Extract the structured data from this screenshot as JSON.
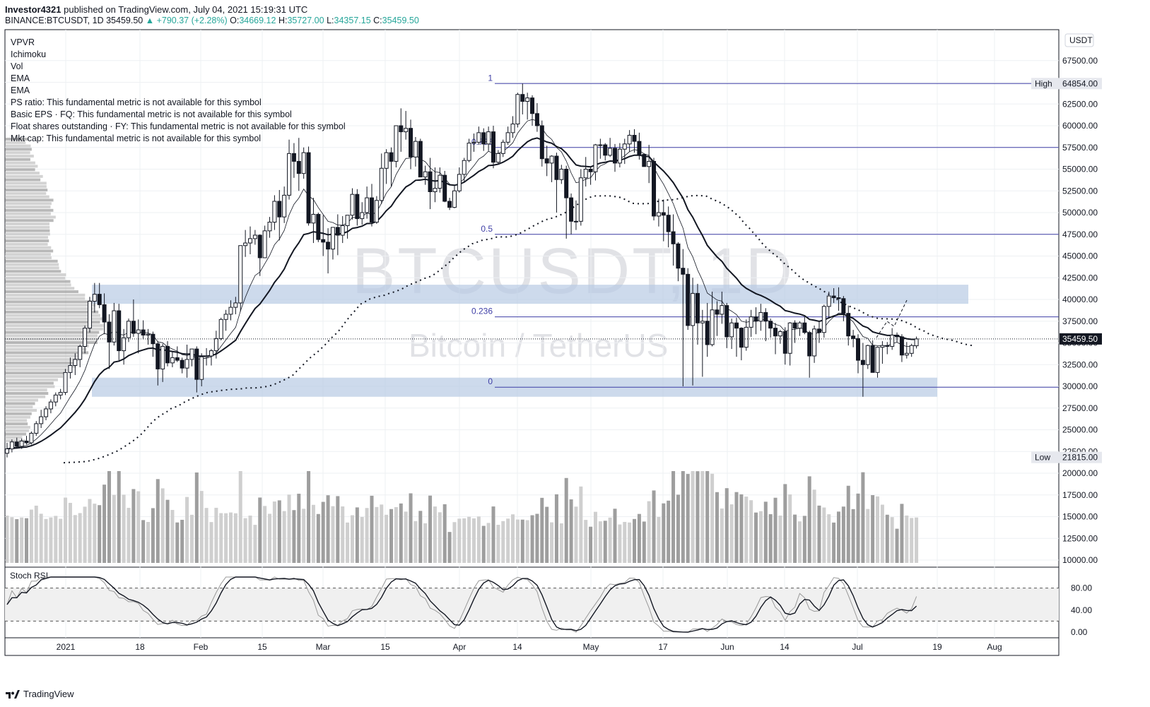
{
  "header": {
    "publisher": "Investor4321",
    "published_text": "published on TradingView.com, July 04, 2021 15:19:31 UTC",
    "symbol_line": "BINANCE:BTCUSDT, 1D",
    "last": "35459.50",
    "change": "▲ +790.37 (+2.28%)",
    "o_label": "O:",
    "o": "34669.12",
    "h_label": "H:",
    "h": "35727.00",
    "l_label": "L:",
    "l": "34357.15",
    "c_label": "C:",
    "c": "35459.50"
  },
  "indicators": [
    "VPVR",
    "Ichimoku",
    "Vol",
    "EMA",
    "EMA",
    "PS ratio: This fundamental metric is not available for this symbol",
    "Basic EPS · FQ: This fundamental metric is not available for this symbol",
    "Float shares outstanding · FY: This fundamental metric is not available for this symbol",
    "Mkt cap: This fundamental metric is not available for this symbol"
  ],
  "watermark": {
    "symbol": "BTCUSDT, 1D",
    "description": "Bitcoin / TetherUS"
  },
  "currency": "USDT",
  "footer": {
    "brand": "TradingView"
  },
  "colors": {
    "fib_line": "#3f3fa6",
    "zone": "#b8cbe4",
    "candle": "#131722",
    "volume": "#9e9e9e",
    "volume_light": "#cfcfcf"
  },
  "chart_data": {
    "type": "candlestick",
    "title": "BTCUSDT, 1D",
    "y_axis_ticks": [
      "67500.00",
      "65000.00",
      "62500.00",
      "60000.00",
      "57500.00",
      "55000.00",
      "52500.00",
      "50000.00",
      "47500.00",
      "45000.00",
      "42500.00",
      "40000.00",
      "37500.00",
      "35000.00",
      "32500.00",
      "30000.00",
      "27500.00",
      "25000.00",
      "22500.00",
      "20000.00",
      "17500.00",
      "15000.00",
      "12500.00",
      "10000.00"
    ],
    "ylim": [
      10000,
      70000
    ],
    "x_axis_ticks": [
      "2021",
      "18",
      "Feb",
      "15",
      "Mar",
      "15",
      "Apr",
      "14",
      "May",
      "17",
      "Jun",
      "14",
      "Jul",
      "19",
      "Aug"
    ],
    "high_marker": {
      "label": "High",
      "value": "64854.00"
    },
    "low_marker": {
      "label": "Low",
      "value": "21815.00"
    },
    "last_price": "35459.50",
    "fib_levels": [
      {
        "ratio": "1",
        "price": 64854
      },
      {
        "ratio": "0.786",
        "price": 57500
      },
      {
        "ratio": "0.5",
        "price": 47500
      },
      {
        "ratio": "0.236",
        "price": 38000
      },
      {
        "ratio": "0",
        "price": 29900
      }
    ],
    "zones": [
      {
        "from": 39500,
        "to": 41700
      },
      {
        "from": 28800,
        "to": 31000
      }
    ],
    "stoch_rsi": {
      "label": "Stoch RSI",
      "ticks": [
        "80.00",
        "40.00",
        "0.00"
      ],
      "upper": 80,
      "lower": 20
    },
    "candles": [
      [
        22300,
        23500,
        21815,
        22800
      ],
      [
        22800,
        23900,
        22400,
        23600
      ],
      [
        23600,
        24100,
        22900,
        23100
      ],
      [
        23100,
        24000,
        22800,
        23700
      ],
      [
        23700,
        24300,
        23300,
        23500
      ],
      [
        23500,
        24800,
        23300,
        24600
      ],
      [
        24600,
        26000,
        24300,
        25700
      ],
      [
        25700,
        27300,
        25200,
        26500
      ],
      [
        26500,
        27700,
        26100,
        27400
      ],
      [
        27400,
        28500,
        26900,
        28200
      ],
      [
        28200,
        29300,
        27700,
        29000
      ],
      [
        29000,
        29700,
        28500,
        29300
      ],
      [
        29300,
        32000,
        29000,
        31600
      ],
      [
        31600,
        33300,
        30900,
        32400
      ],
      [
        32400,
        33800,
        31300,
        33100
      ],
      [
        33100,
        34800,
        32200,
        34600
      ],
      [
        34600,
        37000,
        33800,
        36700
      ],
      [
        36700,
        40300,
        36200,
        39800
      ],
      [
        39800,
        41900,
        38500,
        40600
      ],
      [
        40600,
        41900,
        39000,
        39400
      ],
      [
        39400,
        40700,
        36000,
        37400
      ],
      [
        37400,
        38300,
        32000,
        35100
      ],
      [
        35100,
        39600,
        34700,
        38700
      ],
      [
        38700,
        39500,
        33000,
        34100
      ],
      [
        34100,
        36600,
        32500,
        35600
      ],
      [
        35600,
        37800,
        35100,
        37500
      ],
      [
        37500,
        40000,
        35700,
        36100
      ],
      [
        36100,
        37700,
        33800,
        36500
      ],
      [
        36500,
        37600,
        35400,
        35900
      ],
      [
        35900,
        36600,
        34800,
        36000
      ],
      [
        36000,
        36300,
        33400,
        34900
      ],
      [
        34900,
        35200,
        30100,
        32000
      ],
      [
        32000,
        34900,
        30500,
        34600
      ],
      [
        34600,
        35200,
        32300,
        32700
      ],
      [
        32700,
        34000,
        32200,
        33300
      ],
      [
        33300,
        34600,
        32800,
        33000
      ],
      [
        33000,
        33300,
        31500,
        32100
      ],
      [
        32100,
        34800,
        31000,
        33100
      ],
      [
        33100,
        34300,
        32300,
        34300
      ],
      [
        34300,
        34600,
        29300,
        30800
      ],
      [
        30800,
        33800,
        30000,
        33400
      ],
      [
        33400,
        34400,
        32400,
        33500
      ],
      [
        33500,
        34300,
        32400,
        34100
      ],
      [
        34100,
        36400,
        33200,
        35500
      ],
      [
        35500,
        37900,
        35300,
        37700
      ],
      [
        37700,
        38800,
        36400,
        38300
      ],
      [
        38300,
        39900,
        37600,
        39100
      ],
      [
        39100,
        40300,
        38300,
        39600
      ],
      [
        39600,
        46200,
        38600,
        46200
      ],
      [
        46200,
        48000,
        44900,
        46500
      ],
      [
        46500,
        48400,
        45200,
        47000
      ],
      [
        47000,
        48000,
        46300,
        47400
      ],
      [
        47400,
        47500,
        42700,
        44800
      ],
      [
        44800,
        48500,
        44800,
        47900
      ],
      [
        47900,
        49500,
        47100,
        48900
      ],
      [
        48900,
        52000,
        48000,
        51300
      ],
      [
        51300,
        52600,
        46800,
        49500
      ],
      [
        49500,
        53000,
        48800,
        52000
      ],
      [
        52000,
        58400,
        51500,
        56800
      ],
      [
        56800,
        58000,
        54000,
        55900
      ],
      [
        55900,
        58600,
        52500,
        54500
      ],
      [
        54500,
        57500,
        53900,
        56900
      ],
      [
        56900,
        57600,
        48500,
        48800
      ],
      [
        48800,
        51700,
        46500,
        49800
      ],
      [
        49800,
        50000,
        46600,
        46900
      ],
      [
        46900,
        49700,
        45000,
        46600
      ],
      [
        46600,
        48200,
        43000,
        45800
      ],
      [
        45800,
        48300,
        44600,
        48300
      ],
      [
        48300,
        49800,
        45100,
        47400
      ],
      [
        47400,
        49600,
        46500,
        48500
      ],
      [
        48500,
        49700,
        47000,
        49700
      ],
      [
        49700,
        52800,
        49200,
        52100
      ],
      [
        52100,
        52700,
        48500,
        49300
      ],
      [
        49300,
        51200,
        48600,
        50000
      ],
      [
        50000,
        53000,
        49300,
        51700
      ],
      [
        51700,
        53300,
        48400,
        48900
      ],
      [
        48900,
        51900,
        48700,
        51400
      ],
      [
        51400,
        56800,
        51000,
        55100
      ],
      [
        55100,
        57300,
        53300,
        56900
      ],
      [
        56900,
        57500,
        53000,
        55900
      ],
      [
        55900,
        60000,
        55200,
        60000
      ],
      [
        60000,
        62000,
        57000,
        59300
      ],
      [
        59300,
        61700,
        58400,
        59700
      ],
      [
        59700,
        60700,
        55000,
        56400
      ],
      [
        56400,
        58700,
        55300,
        58200
      ],
      [
        58200,
        58500,
        54100,
        54100
      ],
      [
        54100,
        55400,
        53200,
        54700
      ],
      [
        54700,
        56300,
        50400,
        52400
      ],
      [
        52400,
        55200,
        51200,
        52800
      ],
      [
        52800,
        55200,
        52300,
        54300
      ],
      [
        54300,
        54800,
        51200,
        51300
      ],
      [
        51300,
        51700,
        50300,
        50600
      ],
      [
        50600,
        53100,
        50500,
        52500
      ],
      [
        52500,
        55200,
        52300,
        54400
      ],
      [
        54400,
        56300,
        53600,
        56000
      ],
      [
        56000,
        58500,
        55800,
        58000
      ],
      [
        58000,
        59100,
        57000,
        58100
      ],
      [
        58100,
        59900,
        57800,
        59200
      ],
      [
        59200,
        59700,
        57100,
        57900
      ],
      [
        57900,
        59900,
        57100,
        59300
      ],
      [
        59300,
        60000,
        55100,
        55800
      ],
      [
        55800,
        57200,
        55500,
        56800
      ],
      [
        56800,
        58400,
        56400,
        58100
      ],
      [
        58100,
        59900,
        57800,
        59200
      ],
      [
        59200,
        61100,
        58600,
        60200
      ],
      [
        60200,
        63800,
        59800,
        63600
      ],
      [
        63600,
        64854,
        61300,
        62800
      ],
      [
        62800,
        63800,
        60700,
        63200
      ],
      [
        63200,
        63500,
        60000,
        61400
      ],
      [
        61400,
        62600,
        59300,
        60000
      ],
      [
        60000,
        60600,
        55300,
        56200
      ],
      [
        56200,
        57700,
        54200,
        55700
      ],
      [
        55700,
        56600,
        53500,
        56500
      ],
      [
        56500,
        56900,
        50000,
        53800
      ],
      [
        53800,
        55500,
        53300,
        55000
      ],
      [
        55000,
        55400,
        47000,
        51700
      ],
      [
        51700,
        52200,
        47500,
        49000
      ],
      [
        49000,
        51400,
        48000,
        49000
      ],
      [
        49000,
        55000,
        48500,
        54000
      ],
      [
        54000,
        56400,
        53000,
        55000
      ],
      [
        55000,
        55200,
        53200,
        54700
      ],
      [
        54700,
        57900,
        53700,
        57800
      ],
      [
        57800,
        58500,
        56200,
        57800
      ],
      [
        57800,
        58000,
        56000,
        56600
      ],
      [
        56600,
        58600,
        56400,
        57400
      ],
      [
        57400,
        57900,
        54700,
        55700
      ],
      [
        55700,
        58000,
        55200,
        57300
      ],
      [
        57300,
        58500,
        55600,
        57900
      ],
      [
        57900,
        59500,
        57000,
        58900
      ],
      [
        58900,
        59600,
        56900,
        58200
      ],
      [
        58200,
        59200,
        56100,
        56700
      ],
      [
        56700,
        56800,
        55300,
        55300
      ],
      [
        55300,
        57800,
        53400,
        55900
      ],
      [
        55900,
        56300,
        49100,
        49600
      ],
      [
        49600,
        51600,
        48400,
        50000
      ],
      [
        50000,
        51500,
        46700,
        49700
      ],
      [
        49700,
        50700,
        46000,
        47800
      ],
      [
        47800,
        49800,
        43900,
        46400
      ],
      [
        46400,
        46600,
        42100,
        43600
      ],
      [
        43600,
        45800,
        30000,
        42900
      ],
      [
        42900,
        43600,
        36500,
        37000
      ],
      [
        37000,
        42500,
        30100,
        40700
      ],
      [
        40700,
        41800,
        34800,
        37300
      ],
      [
        37300,
        38800,
        31100,
        37500
      ],
      [
        37500,
        39600,
        33400,
        34800
      ],
      [
        34800,
        40900,
        34600,
        38800
      ],
      [
        38800,
        39800,
        35800,
        38300
      ],
      [
        38300,
        40900,
        37200,
        39300
      ],
      [
        39300,
        39600,
        34400,
        35700
      ],
      [
        35700,
        37800,
        34300,
        37300
      ],
      [
        37300,
        37900,
        33400,
        36700
      ],
      [
        36700,
        36800,
        33000,
        34500
      ],
      [
        34500,
        37700,
        34100,
        36800
      ],
      [
        36800,
        38800,
        35700,
        38000
      ],
      [
        38000,
        39100,
        36000,
        37500
      ],
      [
        37500,
        39500,
        36400,
        38500
      ],
      [
        38500,
        39000,
        35200,
        37500
      ],
      [
        37500,
        37800,
        35600,
        36700
      ],
      [
        36700,
        37300,
        33700,
        35800
      ],
      [
        35800,
        36500,
        34900,
        36300
      ],
      [
        36300,
        36800,
        32500,
        33800
      ],
      [
        33800,
        37400,
        32400,
        37300
      ],
      [
        37300,
        37600,
        35000,
        36700
      ],
      [
        36700,
        37500,
        35800,
        37300
      ],
      [
        37300,
        38000,
        36000,
        36200
      ],
      [
        36200,
        36400,
        31000,
        33500
      ],
      [
        33500,
        37000,
        32700,
        36600
      ],
      [
        36600,
        37400,
        35000,
        36200
      ],
      [
        36200,
        39400,
        35600,
        39200
      ],
      [
        39200,
        40900,
        38000,
        40400
      ],
      [
        40400,
        41300,
        39600,
        40200
      ],
      [
        40200,
        41400,
        38700,
        40100
      ],
      [
        40100,
        40400,
        37500,
        38400
      ],
      [
        38400,
        39300,
        34700,
        35800
      ],
      [
        35800,
        36500,
        34500,
        35500
      ],
      [
        35500,
        36000,
        31500,
        33000
      ],
      [
        33000,
        35000,
        28800,
        32500
      ],
      [
        32500,
        34800,
        32000,
        34700
      ],
      [
        34700,
        35300,
        31700,
        31600
      ],
      [
        31600,
        34600,
        31000,
        34500
      ],
      [
        34500,
        35200,
        32600,
        34700
      ],
      [
        34700,
        35100,
        33700,
        34600
      ],
      [
        34600,
        36700,
        34200,
        35900
      ],
      [
        35900,
        36200,
        35100,
        35700
      ],
      [
        35700,
        36000,
        32800,
        33600
      ],
      [
        33600,
        35100,
        33200,
        33800
      ],
      [
        33800,
        34900,
        33400,
        34700
      ],
      [
        34669.12,
        35727,
        34357.15,
        35459.5
      ]
    ],
    "volume_note": "volume bars shown in lower pane (relative)",
    "ema_fast": "fast EMA overlay",
    "ema_slow": "slow EMA overlay"
  }
}
